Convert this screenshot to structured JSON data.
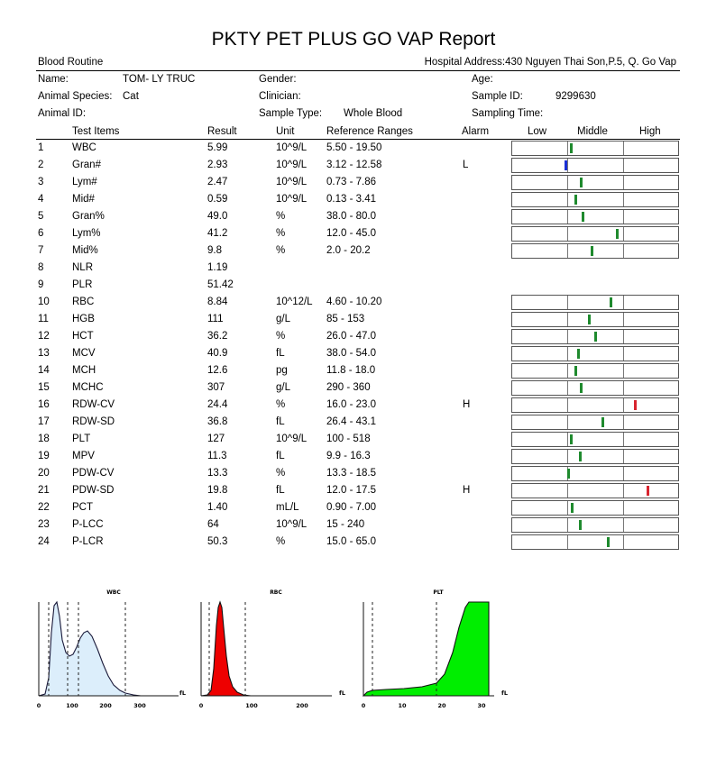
{
  "report": {
    "title": "PKTY PET PLUS GO VAP Report",
    "section": "Blood Routine",
    "hospital_address": "Hospital Address:430 Nguyen Thai Son,P.5, Q. Go Vap"
  },
  "patient": {
    "name_label": "Name:",
    "name_value": "TOM- LY TRUC",
    "gender_label": "Gender:",
    "gender_value": "",
    "age_label": "Age:",
    "age_value": "",
    "species_label": "Animal Species:",
    "species_value": "Cat",
    "clinician_label": "Clinician:",
    "clinician_value": "",
    "sample_id_label": "Sample ID:",
    "sample_id_value": "9299630",
    "animal_id_label": "Animal ID:",
    "animal_id_value": "",
    "sample_type_label": "Sample Type:",
    "sample_type_value": "Whole Blood",
    "sampling_time_label": "Sampling Time:",
    "sampling_time_value": ""
  },
  "table": {
    "headers": {
      "test_items": "Test Items",
      "result": "Result",
      "unit": "Unit",
      "reference": "Reference Ranges",
      "alarm": "Alarm",
      "low": "Low",
      "middle": "Middle",
      "high": "High"
    },
    "rows": [
      {
        "no": "1",
        "item": "WBC",
        "result": "5.99",
        "unit": "10^9/L",
        "ref": "5.50 - 19.50",
        "alarm": "",
        "level": 0.05,
        "color": "#1f8a2e"
      },
      {
        "no": "2",
        "item": "Gran#",
        "result": "2.93",
        "unit": "10^9/L",
        "ref": "3.12 - 12.58",
        "alarm": "L",
        "level": -0.04,
        "color": "#1a2fd6"
      },
      {
        "no": "3",
        "item": "Lym#",
        "result": "2.47",
        "unit": "10^9/L",
        "ref": "0.73 - 7.86",
        "alarm": "",
        "level": 0.24,
        "color": "#1f8a2e"
      },
      {
        "no": "4",
        "item": "Mid#",
        "result": "0.59",
        "unit": "10^9/L",
        "ref": "0.13 - 3.41",
        "alarm": "",
        "level": 0.14,
        "color": "#1f8a2e"
      },
      {
        "no": "5",
        "item": "Gran%",
        "result": "49.0",
        "unit": "%",
        "ref": "38.0 - 80.0",
        "alarm": "",
        "level": 0.26,
        "color": "#1f8a2e"
      },
      {
        "no": "6",
        "item": "Lym%",
        "result": "41.2",
        "unit": "%",
        "ref": "12.0 - 45.0",
        "alarm": "",
        "level": 0.88,
        "color": "#1f8a2e"
      },
      {
        "no": "7",
        "item": "Mid%",
        "result": "9.8",
        "unit": "%",
        "ref": "2.0 - 20.2",
        "alarm": "",
        "level": 0.43,
        "color": "#1f8a2e"
      },
      {
        "no": "8",
        "item": "NLR",
        "result": "1.19",
        "unit": "",
        "ref": "",
        "alarm": "",
        "level": null,
        "color": ""
      },
      {
        "no": "9",
        "item": "PLR",
        "result": "51.42",
        "unit": "",
        "ref": "",
        "alarm": "",
        "level": null,
        "color": ""
      },
      {
        "no": "10",
        "item": "RBC",
        "result": "8.84",
        "unit": "10^12/L",
        "ref": "4.60 - 10.20",
        "alarm": "",
        "level": 0.76,
        "color": "#1f8a2e"
      },
      {
        "no": "11",
        "item": "HGB",
        "result": "111",
        "unit": "g/L",
        "ref": "85 - 153",
        "alarm": "",
        "level": 0.38,
        "color": "#1f8a2e"
      },
      {
        "no": "12",
        "item": "HCT",
        "result": "36.2",
        "unit": "%",
        "ref": "26.0 - 47.0",
        "alarm": "",
        "level": 0.49,
        "color": "#1f8a2e"
      },
      {
        "no": "13",
        "item": "MCV",
        "result": "40.9",
        "unit": "fL",
        "ref": "38.0 - 54.0",
        "alarm": "",
        "level": 0.18,
        "color": "#1f8a2e"
      },
      {
        "no": "14",
        "item": "MCH",
        "result": "12.6",
        "unit": "pg",
        "ref": "11.8 - 18.0",
        "alarm": "",
        "level": 0.13,
        "color": "#1f8a2e"
      },
      {
        "no": "15",
        "item": "MCHC",
        "result": "307",
        "unit": "g/L",
        "ref": "290 - 360",
        "alarm": "",
        "level": 0.24,
        "color": "#1f8a2e"
      },
      {
        "no": "16",
        "item": "RDW-CV",
        "result": "24.4",
        "unit": "%",
        "ref": "16.0 - 23.0",
        "alarm": "H",
        "level": 1.2,
        "color": "#d8242f"
      },
      {
        "no": "17",
        "item": "RDW-SD",
        "result": "36.8",
        "unit": "fL",
        "ref": "26.4 - 43.1",
        "alarm": "",
        "level": 0.62,
        "color": "#1f8a2e"
      },
      {
        "no": "18",
        "item": "PLT",
        "result": "127",
        "unit": "10^9/L",
        "ref": "100 - 518",
        "alarm": "",
        "level": 0.06,
        "color": "#1f8a2e"
      },
      {
        "no": "19",
        "item": "MPV",
        "result": "11.3",
        "unit": "fL",
        "ref": "9.9 - 16.3",
        "alarm": "",
        "level": 0.22,
        "color": "#1f8a2e"
      },
      {
        "no": "20",
        "item": "PDW-CV",
        "result": "13.3",
        "unit": "%",
        "ref": "13.3 - 18.5",
        "alarm": "",
        "level": 0.0,
        "color": "#1f8a2e"
      },
      {
        "no": "21",
        "item": "PDW-SD",
        "result": "19.8",
        "unit": "fL",
        "ref": "12.0 - 17.5",
        "alarm": "H",
        "level": 1.42,
        "color": "#d8242f"
      },
      {
        "no": "22",
        "item": "PCT",
        "result": "1.40",
        "unit": "mL/L",
        "ref": "0.90 - 7.00",
        "alarm": "",
        "level": 0.08,
        "color": "#1f8a2e"
      },
      {
        "no": "23",
        "item": "P-LCC",
        "result": "64",
        "unit": "10^9/L",
        "ref": "15 - 240",
        "alarm": "",
        "level": 0.22,
        "color": "#1f8a2e"
      },
      {
        "no": "24",
        "item": "P-LCR",
        "result": "50.3",
        "unit": "%",
        "ref": "15.0 - 65.0",
        "alarm": "",
        "level": 0.71,
        "color": "#1f8a2e"
      }
    ]
  },
  "histograms": {
    "wbc": {
      "title": "WBC",
      "unit": "fL",
      "ticks": [
        "0",
        "100",
        "200",
        "300"
      ],
      "fill": "#dceefb",
      "line": "#1a1a3a"
    },
    "rbc": {
      "title": "RBC",
      "unit": "fL",
      "ticks": [
        "0",
        "100",
        "200"
      ],
      "fill": "#ee0000",
      "line": "#111111"
    },
    "plt": {
      "title": "PLT",
      "unit": "fL",
      "ticks": [
        "0",
        "10",
        "20",
        "30"
      ],
      "fill": "#00ee00",
      "line": "#111111"
    }
  }
}
